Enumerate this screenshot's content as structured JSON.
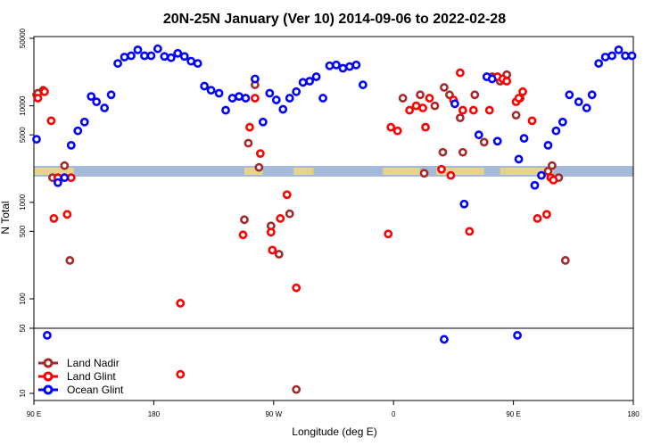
{
  "chart_data": {
    "type": "scatter",
    "title": "20N-25N January (Ver 10)   2014-09-06 to 2022-02-28",
    "xlabel": "Longitude (deg E)",
    "ylabel": "N Total",
    "x_ticks": [
      {
        "value": 90,
        "label": "90 E"
      },
      {
        "value": 180,
        "label": "180"
      },
      {
        "value": 270,
        "label": "90 W"
      },
      {
        "value": 360,
        "label": "0"
      },
      {
        "value": 450,
        "label": "90 E"
      },
      {
        "value": 540,
        "label": "180"
      }
    ],
    "xlim": [
      90,
      540
    ],
    "y_upper_ticks": [
      {
        "value": 100,
        "label": "100"
      },
      {
        "value": 500,
        "label": "500"
      },
      {
        "value": 1000,
        "label": "1000"
      },
      {
        "value": 5000,
        "label": "5000"
      },
      {
        "value": 10000,
        "label": "10000"
      },
      {
        "value": 50000,
        "label": "50000"
      }
    ],
    "y_lower_ticks": [
      {
        "value": 10,
        "label": "10"
      },
      {
        "value": 50,
        "label": "50"
      }
    ],
    "y_scale": "log",
    "ylim": [
      8,
      60000
    ],
    "colors": {
      "land_nadir": "#a52a2a",
      "land_glint": "#ff0000",
      "ocean_glint": "#0000ff",
      "map_ocean": "#a4b8d8",
      "map_land": "#f5d77f"
    },
    "legend_position": "bottom-left",
    "series": [
      {
        "name": "Land Nadir",
        "color": "#a52a2a",
        "points": [
          [
            92,
            13000
          ],
          [
            93,
            13500
          ],
          [
            97,
            14500
          ],
          [
            104,
            1800
          ],
          [
            113,
            2400
          ],
          [
            117,
            250
          ],
          [
            248,
            660
          ],
          [
            251,
            4100
          ],
          [
            256,
            16500
          ],
          [
            259,
            2300
          ],
          [
            268,
            570
          ],
          [
            274,
            290
          ],
          [
            282,
            760
          ],
          [
            287,
            11
          ],
          [
            367,
            12000
          ],
          [
            380,
            13000
          ],
          [
            383,
            2000
          ],
          [
            391,
            10000
          ],
          [
            397,
            3300
          ],
          [
            398,
            15500
          ],
          [
            402,
            13000
          ],
          [
            410,
            7500
          ],
          [
            412,
            3300
          ],
          [
            421,
            13000
          ],
          [
            428,
            4200
          ],
          [
            434,
            20000
          ],
          [
            440,
            18000
          ],
          [
            445,
            21000
          ],
          [
            452,
            8000
          ],
          [
            455,
            12000
          ],
          [
            476,
            2100
          ],
          [
            479,
            2400
          ],
          [
            484,
            1800
          ],
          [
            489,
            250
          ]
        ]
      },
      {
        "name": "Land Glint",
        "color": "#ff0000",
        "points": [
          [
            93,
            12000
          ],
          [
            98,
            14000
          ],
          [
            103,
            7000
          ],
          [
            105,
            680
          ],
          [
            108,
            1800
          ],
          [
            115,
            750
          ],
          [
            118,
            1800
          ],
          [
            200,
            90
          ],
          [
            200,
            16
          ],
          [
            247,
            460
          ],
          [
            252,
            6000
          ],
          [
            256,
            12000
          ],
          [
            260,
            3200
          ],
          [
            268,
            490
          ],
          [
            269,
            320
          ],
          [
            275,
            680
          ],
          [
            280,
            1200
          ],
          [
            287,
            130
          ],
          [
            356,
            470
          ],
          [
            358,
            6000
          ],
          [
            363,
            5500
          ],
          [
            372,
            9000
          ],
          [
            377,
            10000
          ],
          [
            382,
            9500
          ],
          [
            384,
            6000
          ],
          [
            387,
            12000
          ],
          [
            396,
            2200
          ],
          [
            403,
            1900
          ],
          [
            405,
            11500
          ],
          [
            410,
            22000
          ],
          [
            412,
            9000
          ],
          [
            417,
            500
          ],
          [
            420,
            9000
          ],
          [
            432,
            9000
          ],
          [
            438,
            20000
          ],
          [
            442,
            19000
          ],
          [
            445,
            18000
          ],
          [
            452,
            11000
          ],
          [
            454,
            12000
          ],
          [
            457,
            14000
          ],
          [
            464,
            7000
          ],
          [
            468,
            680
          ],
          [
            475,
            750
          ],
          [
            478,
            1800
          ],
          [
            480,
            1700
          ]
        ]
      },
      {
        "name": "Ocean Glint",
        "color": "#0000ff",
        "points": [
          [
            92,
            4500
          ],
          [
            100,
            42
          ],
          [
            108,
            1600
          ],
          [
            113,
            1800
          ],
          [
            118,
            3900
          ],
          [
            123,
            5500
          ],
          [
            128,
            6800
          ],
          [
            133,
            12500
          ],
          [
            137,
            11000
          ],
          [
            143,
            9500
          ],
          [
            148,
            13000
          ],
          [
            153,
            27500
          ],
          [
            158,
            32000
          ],
          [
            163,
            33000
          ],
          [
            168,
            38000
          ],
          [
            173,
            33000
          ],
          [
            178,
            33000
          ],
          [
            183,
            39000
          ],
          [
            188,
            32500
          ],
          [
            193,
            31500
          ],
          [
            198,
            35000
          ],
          [
            203,
            32500
          ],
          [
            208,
            29000
          ],
          [
            213,
            27500
          ],
          [
            218,
            16000
          ],
          [
            223,
            14500
          ],
          [
            229,
            13500
          ],
          [
            234,
            9000
          ],
          [
            239,
            12000
          ],
          [
            244,
            12500
          ],
          [
            249,
            12000
          ],
          [
            256,
            19000
          ],
          [
            262,
            6800
          ],
          [
            267,
            13500
          ],
          [
            272,
            11500
          ],
          [
            277,
            9200
          ],
          [
            282,
            12000
          ],
          [
            287,
            14000
          ],
          [
            292,
            17500
          ],
          [
            297,
            18000
          ],
          [
            302,
            20000
          ],
          [
            307,
            12000
          ],
          [
            312,
            26000
          ],
          [
            317,
            26500
          ],
          [
            322,
            24500
          ],
          [
            327,
            25500
          ],
          [
            332,
            26500
          ],
          [
            337,
            16500
          ],
          [
            398,
            38
          ],
          [
            406,
            10500
          ],
          [
            413,
            960
          ],
          [
            424,
            5000
          ],
          [
            430,
            20000
          ],
          [
            434,
            19000
          ],
          [
            438,
            4300
          ],
          [
            453,
            42
          ],
          [
            454,
            2800
          ],
          [
            458,
            4600
          ],
          [
            466,
            1500
          ],
          [
            471,
            1900
          ],
          [
            476,
            3900
          ],
          [
            482,
            5500
          ],
          [
            487,
            6800
          ],
          [
            492,
            13000
          ],
          [
            499,
            11000
          ],
          [
            505,
            9500
          ],
          [
            509,
            13000
          ],
          [
            514,
            27500
          ],
          [
            519,
            32000
          ],
          [
            524,
            33000
          ],
          [
            529,
            38000
          ],
          [
            534,
            33000
          ],
          [
            539,
            33000
          ]
        ]
      }
    ]
  }
}
